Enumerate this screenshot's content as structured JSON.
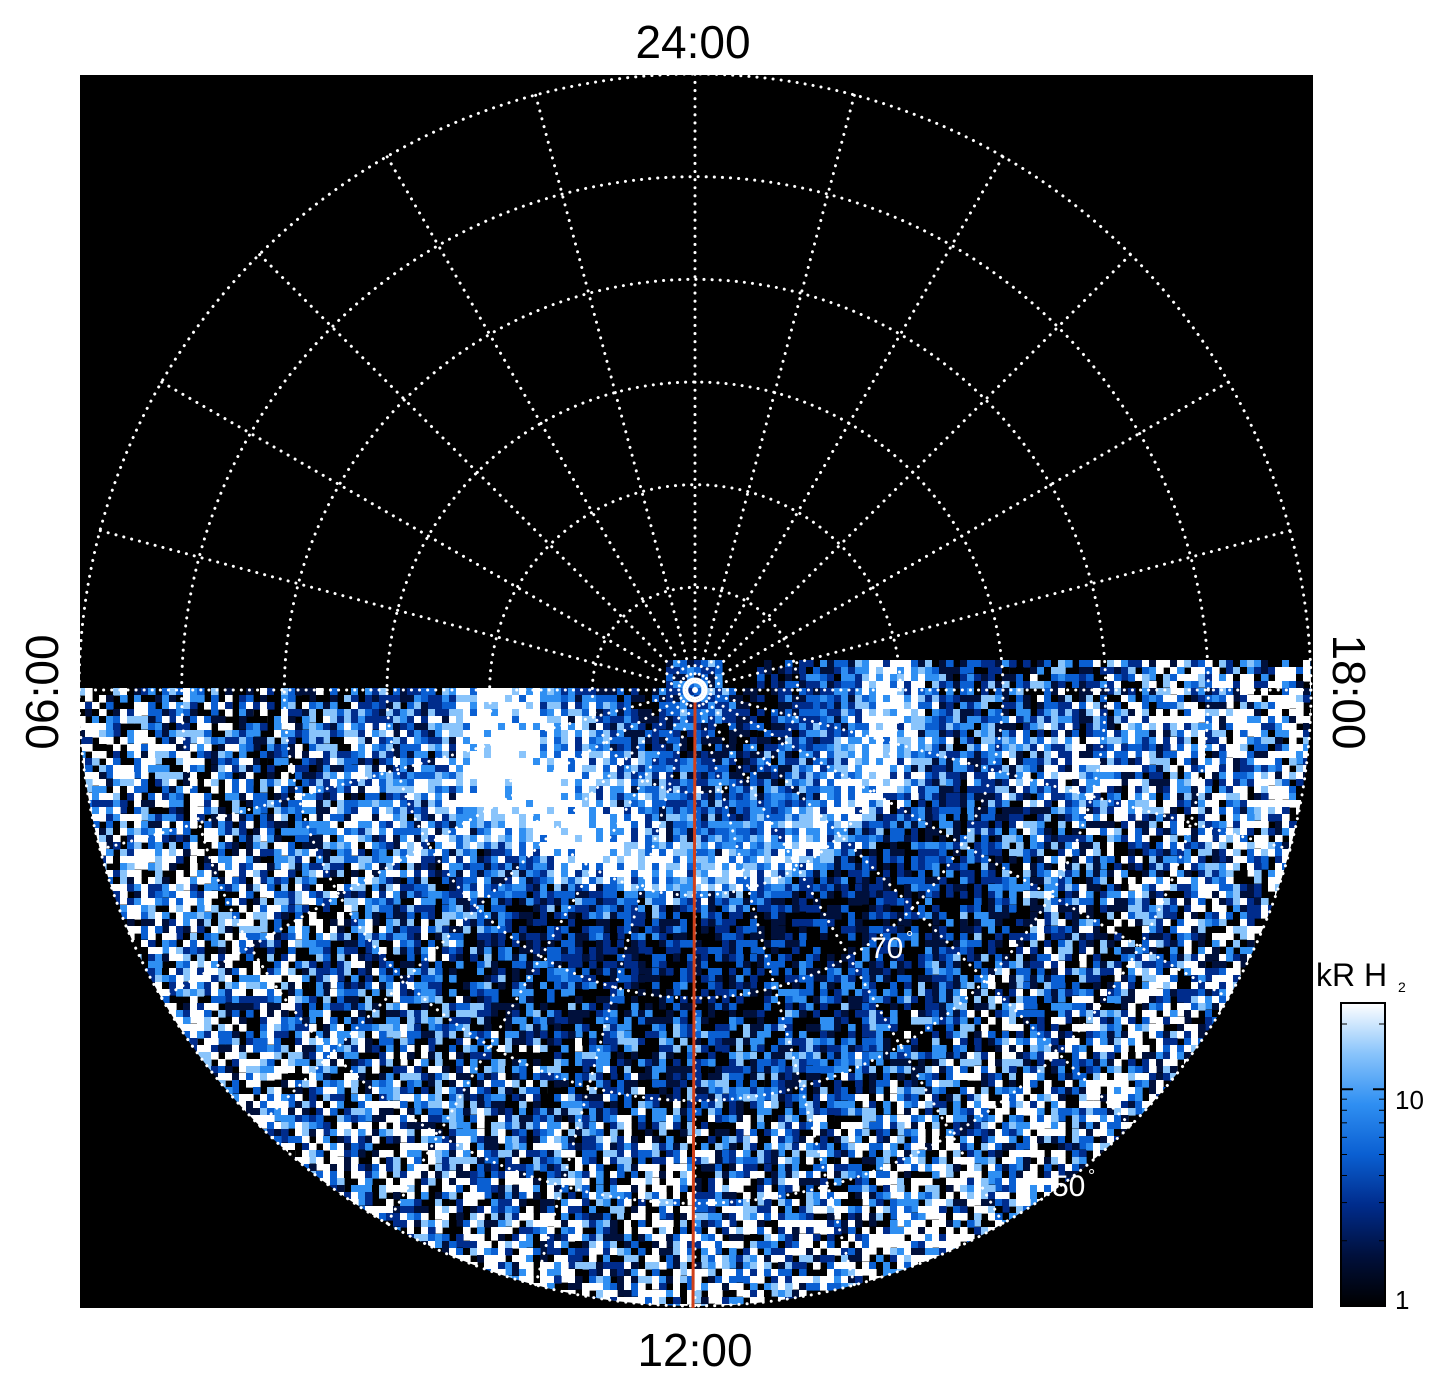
{
  "chart_data": {
    "type": "heatmap",
    "projection": "polar",
    "title": "",
    "local_time_labels": {
      "top": "24:00",
      "left": "06:00",
      "right": "18:00",
      "bottom": "12:00"
    },
    "latitude_labels": [
      {
        "text": "70",
        "latitude": 70
      },
      {
        "text": "50",
        "latitude": 50
      }
    ],
    "degree_symbol": "°",
    "latitude_circles": [
      80,
      70,
      60,
      50,
      40,
      30
    ],
    "meridian_step_hours": 1,
    "data_coverage": "dayside hemisphere only (06:00–18:00 through 12:00), night side empty",
    "colorbar": {
      "label_main": "kR H",
      "label_sub": "2",
      "scale": "log",
      "range": [
        1,
        25
      ],
      "ticks": [
        {
          "value": 1,
          "label": "1"
        },
        {
          "value": 10,
          "label": "10"
        }
      ],
      "colors": [
        "#000000",
        "#00103c",
        "#002c8c",
        "#0a5fd2",
        "#2f8ff2",
        "#89c4fb",
        "#ffffff"
      ]
    },
    "features": [
      {
        "name": "main auroral oval",
        "latitude_approx": 72,
        "local_time_range": [
          "06:00",
          "18:00"
        ]
      },
      {
        "name": "bright patch",
        "local_time_approx": "10:00",
        "latitude_range": [
          68,
          82
        ]
      }
    ],
    "reference_meridian": {
      "local_time": "12:00",
      "color": "#d0401a"
    },
    "pole_marker": "circle"
  }
}
